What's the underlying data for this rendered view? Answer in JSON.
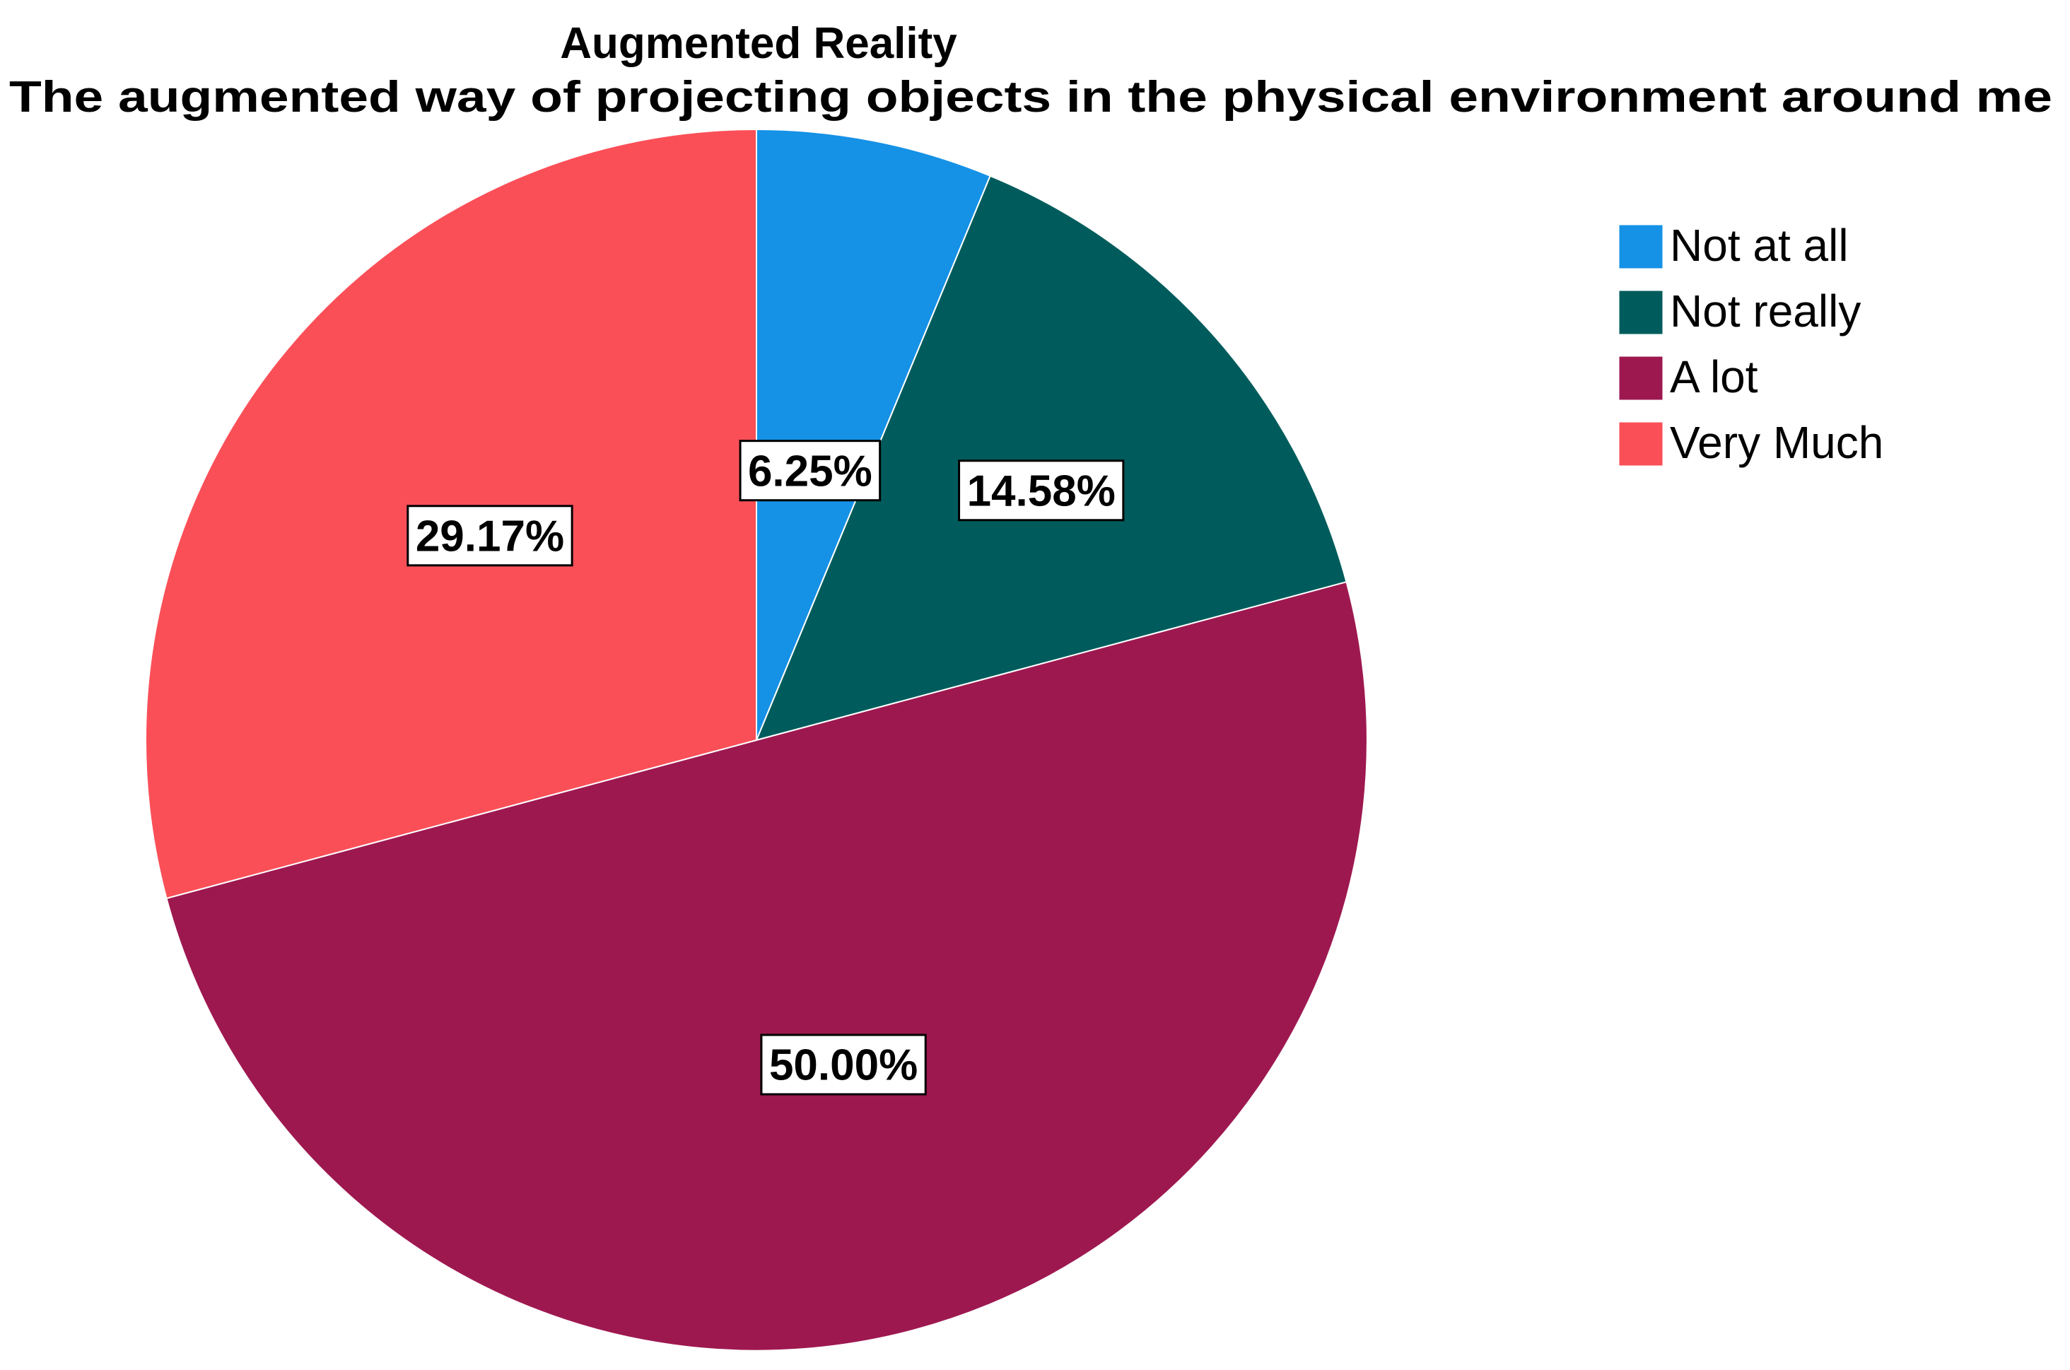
{
  "chart_data": {
    "type": "pie",
    "title": "Augmented Reality",
    "subtitle": "The augmented way of projecting objects in the physical environment around me",
    "slices": [
      {
        "label": "Not at all",
        "value": 6.25,
        "display": "6.25%",
        "color": "#1591e6"
      },
      {
        "label": "Not really",
        "value": 14.58,
        "display": "14.58%",
        "color": "#005c5c"
      },
      {
        "label": "A lot",
        "value": 50.0,
        "display": "50.00%",
        "color": "#9e1850"
      },
      {
        "label": "Very Much",
        "value": 29.17,
        "display": "29.17%",
        "color": "#fb4f58"
      }
    ],
    "legend_position": "top-right",
    "start_angle": "12 o'clock",
    "direction": "clockwise"
  }
}
